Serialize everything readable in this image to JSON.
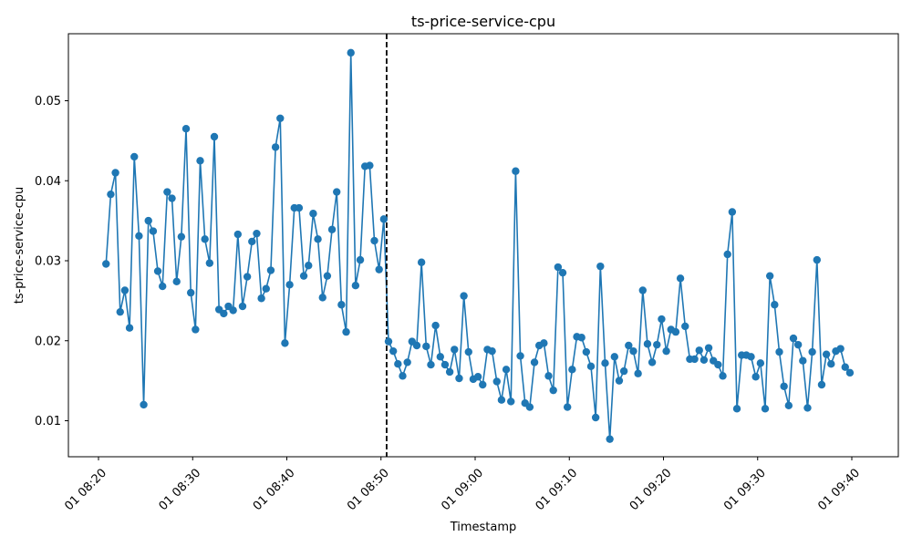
{
  "chart_data": {
    "type": "line",
    "title": "ts-price-service-cpu",
    "xlabel": "Timestamp",
    "ylabel": "ts-price-service-cpu",
    "x_start": "2024-01-01 08:20:48",
    "x_step_seconds": 30,
    "xlim": [
      "2024-01-01 08:20:00",
      "2024-01-01 09:40:00"
    ],
    "ylim": [
      0.005,
      0.058
    ],
    "x_ticks": [
      "01 08:20",
      "01 08:30",
      "01 08:40",
      "01 08:50",
      "01 09:00",
      "01 09:10",
      "01 09:20",
      "01 09:30",
      "01 09:40"
    ],
    "y_ticks": [
      "0.01",
      "0.02",
      "0.03",
      "0.04",
      "0.05"
    ],
    "grid": false,
    "series_color": "#1f77b4",
    "marker": "circle",
    "vline": {
      "x": "2024-01-01 08:50:36",
      "style": "dashed",
      "color": "#000000"
    },
    "series": [
      {
        "values": [
          0.0296,
          0.0383,
          0.041,
          0.0236,
          0.0263,
          0.0216,
          0.043,
          0.0331,
          0.012,
          0.035,
          0.0337,
          0.0287,
          0.0268,
          0.0386,
          0.0378,
          0.0274,
          0.033,
          0.0465,
          0.026,
          0.0214,
          0.0425,
          0.0327,
          0.0297,
          0.0455,
          0.0239,
          0.0234,
          0.0243,
          0.0238,
          0.0333,
          0.0243,
          0.028,
          0.0324,
          0.0334,
          0.0253,
          0.0265,
          0.0288,
          0.0442,
          0.0478,
          0.0197,
          0.027,
          0.0366,
          0.0366,
          0.0281,
          0.0294,
          0.0359,
          0.0327,
          0.0254,
          0.0281,
          0.0339,
          0.0386,
          0.0245,
          0.0211,
          0.056,
          0.0269,
          0.0301,
          0.0418,
          0.0419,
          0.0325,
          0.0289,
          0.0352,
          0.0199,
          0.0187,
          0.0171,
          0.0156,
          0.0173,
          0.0199,
          0.0194,
          0.0298,
          0.0193,
          0.017,
          0.0219,
          0.018,
          0.017,
          0.0161,
          0.0189,
          0.0153,
          0.0256,
          0.0186,
          0.0152,
          0.0155,
          0.0145,
          0.0189,
          0.0187,
          0.0149,
          0.0126,
          0.0164,
          0.0124,
          0.0412,
          0.0181,
          0.0122,
          0.0117,
          0.0173,
          0.0194,
          0.0197,
          0.0156,
          0.0138,
          0.0292,
          0.0285,
          0.0117,
          0.0164,
          0.0205,
          0.0204,
          0.0186,
          0.0168,
          0.0104,
          0.0293,
          0.0172,
          0.0077,
          0.018,
          0.015,
          0.0162,
          0.0194,
          0.0187,
          0.0159,
          0.0263,
          0.0196,
          0.0173,
          0.0195,
          0.0227,
          0.0187,
          0.0214,
          0.0211,
          0.0278,
          0.0218,
          0.0177,
          0.0177,
          0.0188,
          0.0176,
          0.0191,
          0.0175,
          0.017,
          0.0156,
          0.0308,
          0.0361,
          0.0115,
          0.0182,
          0.0182,
          0.018,
          0.0155,
          0.0172,
          0.0115,
          0.0281,
          0.0245,
          0.0186,
          0.0143,
          0.0119,
          0.0203,
          0.0195,
          0.0175,
          0.0116,
          0.0186,
          0.0301,
          0.0145,
          0.0183,
          0.0171,
          0.0187,
          0.019,
          0.0167,
          0.016
        ]
      }
    ]
  }
}
